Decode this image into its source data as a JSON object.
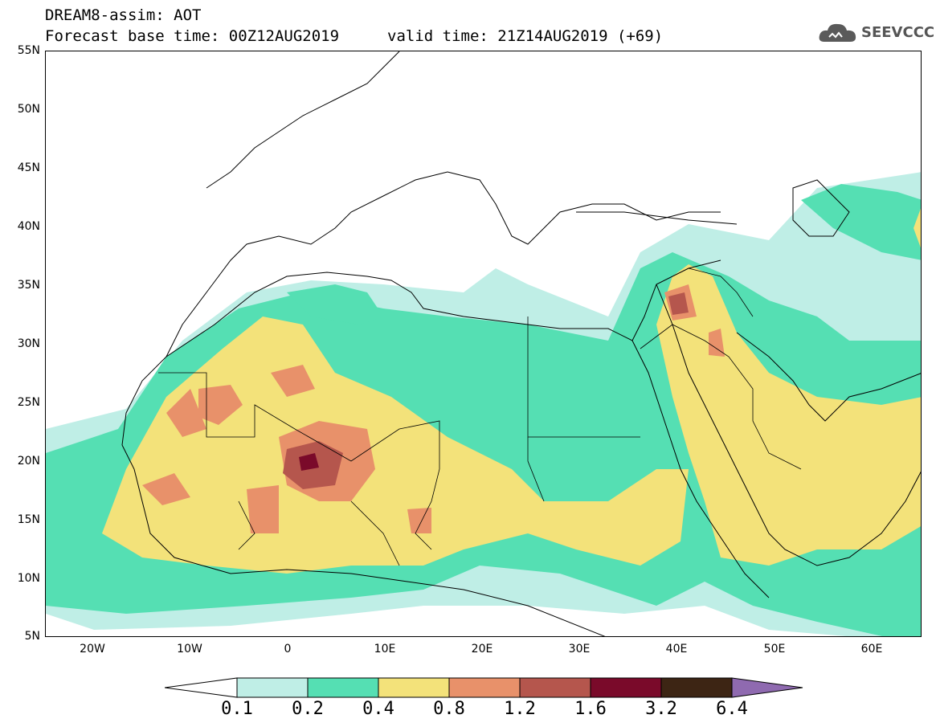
{
  "header": {
    "model_line": "DREAM8-assim: AOT",
    "base_time_line": "Forecast base time: 00Z12AUG2019",
    "valid_time_line": "valid time: 21Z14AUG2019 (+69)",
    "logo_text": "SEEVCCC"
  },
  "map": {
    "lon_range": [
      -25,
      65
    ],
    "lat_range": [
      5,
      55
    ],
    "lat_labels": [
      "55N",
      "50N",
      "45N",
      "40N",
      "35N",
      "30N",
      "25N",
      "20N",
      "15N",
      "10N",
      "5N"
    ],
    "lon_labels": [
      "20W",
      "10W",
      "0",
      "10E",
      "20E",
      "30E",
      "40E",
      "50E",
      "60E"
    ]
  },
  "legend": {
    "levels": [
      "0.1",
      "0.2",
      "0.4",
      "0.8",
      "1.2",
      "1.6",
      "3.2",
      "6.4"
    ],
    "colors": [
      "#bfeee6",
      "#55dfb3",
      "#f3e27a",
      "#e8916a",
      "#b5564d",
      "#7a0a2a",
      "#3d2514",
      "#8f6ab0"
    ],
    "colors_meaning": "contour fill colors for AOT intervals; last color is the over-range arrow"
  }
}
